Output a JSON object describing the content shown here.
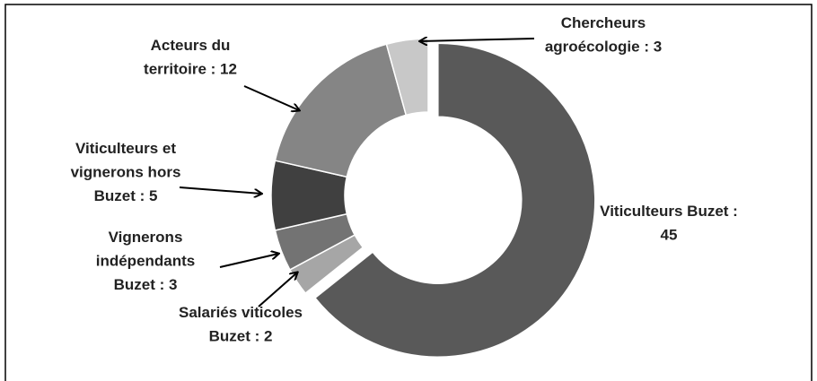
{
  "chart_data": {
    "type": "donut",
    "categories": [
      "Viticulteurs Buzet :\n45",
      "Salariés viticoles\nBuzet : 2",
      "Vignerons\nindépendants\nBuzet : 3",
      "Viticulteurs et\nvignerons hors\nBuzet : 5",
      "Acteurs du\nterritoire : 12",
      "Chercheurs\nagroécologie : 3"
    ],
    "values": [
      45,
      2,
      3,
      5,
      12,
      3
    ],
    "colors": [
      "#595959",
      "#a6a6a6",
      "#737373",
      "#404040",
      "#858585",
      "#c8c8c8"
    ],
    "exploded": [
      0
    ]
  }
}
